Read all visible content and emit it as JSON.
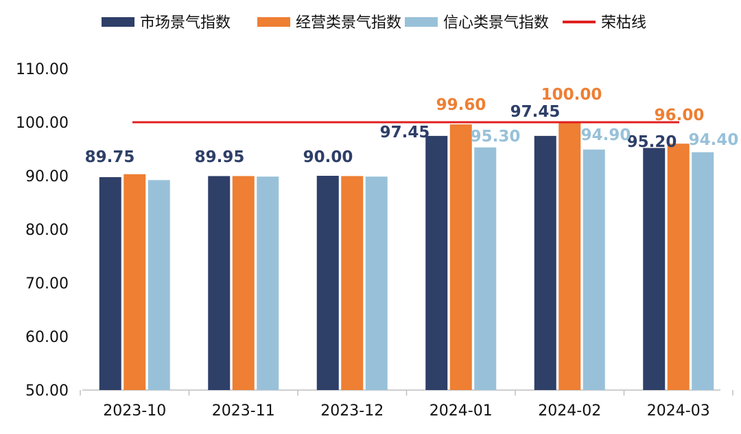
{
  "chart_data": {
    "type": "bar",
    "categories": [
      "2023-10",
      "2023-11",
      "2023-12",
      "2024-01",
      "2024-02",
      "2024-03"
    ],
    "series": [
      {
        "name": "市场景气指数",
        "color": "#2e3f68",
        "values": [
          89.75,
          89.95,
          90.0,
          97.45,
          97.45,
          95.2
        ],
        "labels": [
          "89.75",
          "89.95",
          "90.00",
          "97.45",
          "97.45",
          "95.20"
        ],
        "label_color": "#2e3f68"
      },
      {
        "name": "经营类景气指数",
        "color": "#ee7f33",
        "values": [
          90.3,
          89.95,
          89.95,
          99.6,
          100.0,
          96.0
        ],
        "labels": [
          "",
          "",
          "",
          "99.60",
          "100.00",
          "96.00"
        ],
        "label_color": "#ee7f33"
      },
      {
        "name": "信心类景气指数",
        "color": "#98c1d9",
        "values": [
          89.2,
          89.85,
          89.85,
          95.3,
          94.9,
          94.4
        ],
        "labels": [
          "",
          "",
          "",
          "95.30",
          "94.90",
          "94.40"
        ],
        "label_color": "#98c1d9"
      }
    ],
    "reference_line": {
      "name": "荣枯线",
      "value": 100.0,
      "color": "#e0201f"
    },
    "ylim": [
      50,
      110
    ],
    "yticks": [
      "50.00",
      "60.00",
      "70.00",
      "80.00",
      "90.00",
      "100.00",
      "110.00"
    ],
    "legend_position": "top",
    "grid": false
  }
}
